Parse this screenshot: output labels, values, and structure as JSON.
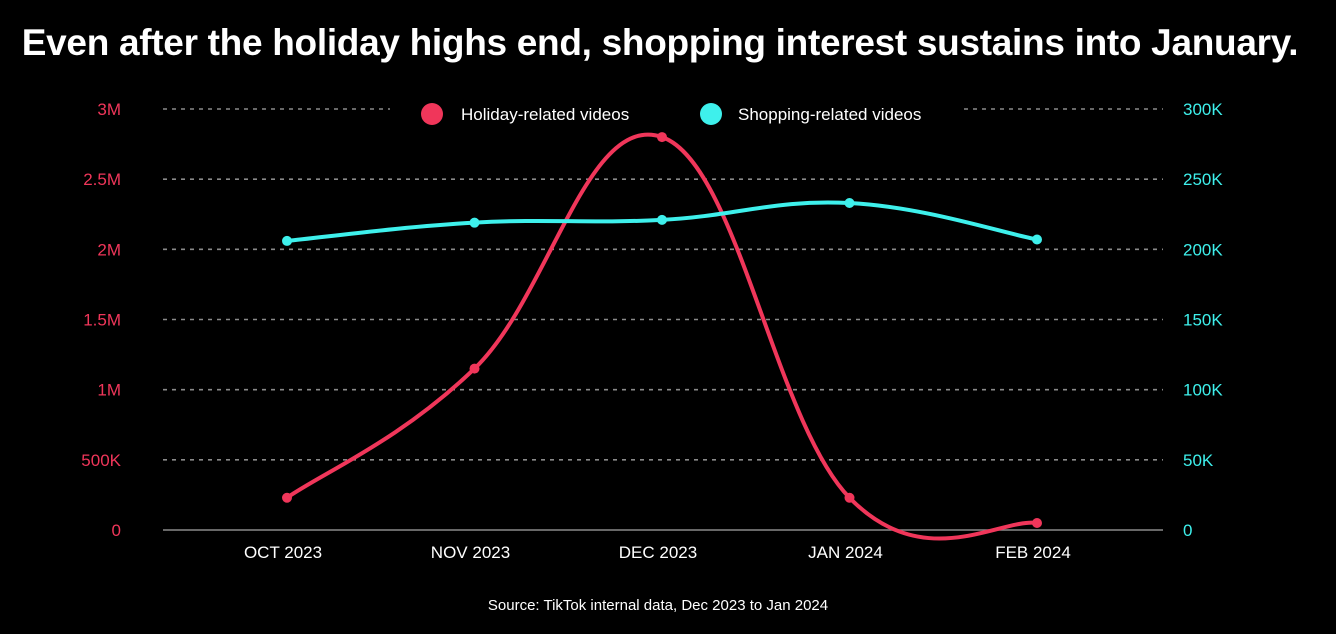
{
  "chart_data": {
    "type": "line",
    "title": "Even after the holiday highs end, shopping interest sustains into January.",
    "source": "Source: TikTok internal data, Dec 2023 to Jan 2024",
    "categories": [
      "OCT 2023",
      "NOV 2023",
      "DEC 2023",
      "JAN 2024",
      "FEB 2024"
    ],
    "y_left": {
      "min": 0,
      "max": 3000000,
      "ticks": [
        0,
        500000,
        1000000,
        1500000,
        2000000,
        2500000,
        3000000
      ],
      "tick_labels": [
        "0",
        "500K",
        "1M",
        "1.5M",
        "2M",
        "2.5M",
        "3M"
      ],
      "color": "#f0365a"
    },
    "y_right": {
      "min": 0,
      "max": 300000,
      "ticks": [
        0,
        50000,
        100000,
        150000,
        200000,
        250000,
        300000
      ],
      "tick_labels": [
        "0",
        "50K",
        "100K",
        "150K",
        "200K",
        "250K",
        "300K"
      ],
      "color": "#3ef0ec"
    },
    "series": [
      {
        "name": "Holiday-related videos",
        "axis": "left",
        "color": "#f0365a",
        "values": [
          230000,
          1150000,
          2800000,
          230000,
          50000
        ]
      },
      {
        "name": "Shopping-related videos",
        "axis": "right",
        "color": "#3ef0ec",
        "values": [
          206000,
          219000,
          221000,
          233000,
          207000
        ]
      }
    ],
    "grid": true,
    "legend": "top-center"
  }
}
